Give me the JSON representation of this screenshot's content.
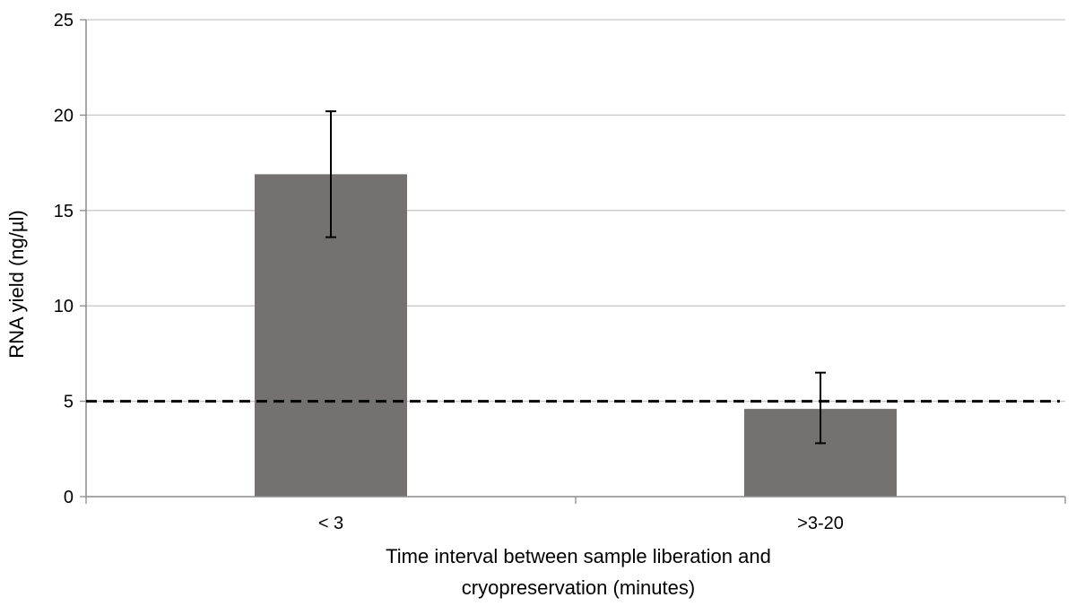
{
  "chart_data": {
    "type": "bar",
    "title": "",
    "xlabel_lines": [
      "Time interval between sample liberation and",
      "cryopreservation (minutes)"
    ],
    "ylabel": "RNA yield (ng/µl)",
    "categories": [
      "< 3",
      ">3-20"
    ],
    "values": [
      16.9,
      4.6
    ],
    "error_low": [
      13.6,
      2.8
    ],
    "error_high": [
      20.2,
      6.5
    ],
    "ylim": [
      0,
      25
    ],
    "yticks": [
      "0",
      "5",
      "10",
      "15",
      "20",
      "25"
    ],
    "reference_line": {
      "value": 5,
      "style": "dashed"
    },
    "grid": true,
    "legend": "none",
    "colors": {
      "bar": "#767171",
      "grid": "#c8c8c8",
      "axis": "#8c8c8c",
      "error": "#000000",
      "reference": "#000000"
    }
  }
}
